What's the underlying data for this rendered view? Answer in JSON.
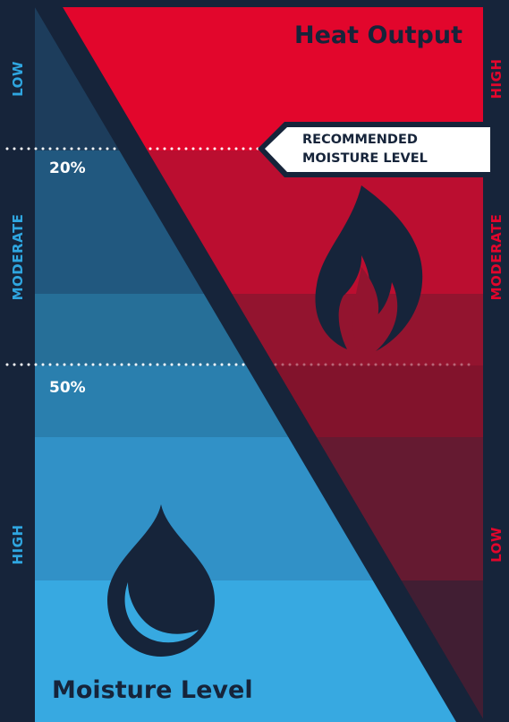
{
  "titles": {
    "heat_output": "Heat Output",
    "moisture_level": "Moisture Level"
  },
  "callout": {
    "line1": "RECOMMENDED",
    "line2": "MOISTURE LEVEL"
  },
  "moisture_axis": {
    "low": "LOW",
    "moderate": "MODERATE",
    "high": "HIGH"
  },
  "heat_axis": {
    "high": "HIGH",
    "moderate": "MODERATE",
    "low": "LOW"
  },
  "markers": {
    "recommended_max": "20%",
    "threshold": "50%"
  },
  "icons": {
    "heat": "flame-icon",
    "moisture": "water-drop-icon"
  },
  "colors": {
    "background": "#16243a",
    "moisture_bands": [
      "#1d3d5c",
      "#21587f",
      "#266f98",
      "#2a7fae",
      "#3191c7",
      "#37a9e1"
    ],
    "heat_bands": [
      "#e2062c",
      "#bb0e30",
      "#93142f",
      "#82132c",
      "#651a31",
      "#411e33"
    ],
    "moisture_label": "#2fa6e0",
    "heat_label": "#e2062c"
  }
}
